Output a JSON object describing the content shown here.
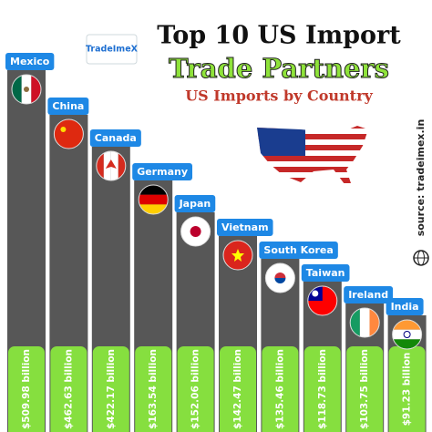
{
  "title": "Top 10 US Import",
  "subtitle": "Trade Partners",
  "tagline": "US Imports by Country",
  "logo": "TradeImeX",
  "source": "source: tradeimex.in",
  "items": [
    {
      "country": "Mexico",
      "value": "$509.98 billion"
    },
    {
      "country": "China",
      "value": "$462.63 billion"
    },
    {
      "country": "Canada",
      "value": "$422.17 billion"
    },
    {
      "country": "Germany",
      "value": "$163.54 billion"
    },
    {
      "country": "Japan",
      "value": "$152.06 billion"
    },
    {
      "country": "Vietnam",
      "value": "$142.47 billion"
    },
    {
      "country": "South Korea",
      "value": "$135.46 billion"
    },
    {
      "country": "Taiwan",
      "value": "$118.73 billion"
    },
    {
      "country": "Ireland",
      "value": "$103.75 billion"
    },
    {
      "country": "India",
      "value": "$91.23 billion"
    }
  ]
}
